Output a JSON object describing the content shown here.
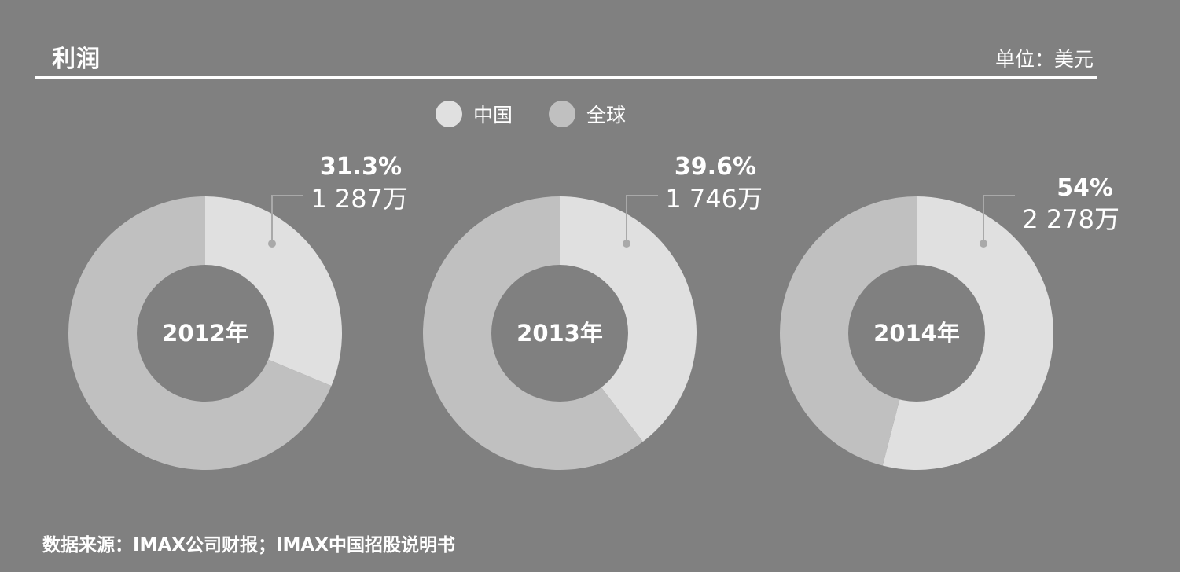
{
  "header": {
    "title": "利润",
    "unit": "单位：美元"
  },
  "legend": [
    {
      "label": "中国",
      "color": "#e0e0e0"
    },
    {
      "label": "全球",
      "color": "#c0c0c0"
    }
  ],
  "colors": {
    "background": "#808080",
    "china": "#e0e0e0",
    "global": "#c0c0c0",
    "leader": "#a9a9a9"
  },
  "chart_data": [
    {
      "type": "pie",
      "center_label": "2012年",
      "slices": [
        {
          "name": "中国",
          "value": 31.3
        },
        {
          "name": "全球",
          "value": 68.7
        }
      ],
      "annotation": {
        "percent": "31.3%",
        "value": "1 287万"
      }
    },
    {
      "type": "pie",
      "center_label": "2013年",
      "slices": [
        {
          "name": "中国",
          "value": 39.6
        },
        {
          "name": "全球",
          "value": 60.4
        }
      ],
      "annotation": {
        "percent": "39.6%",
        "value": "1 746万"
      }
    },
    {
      "type": "pie",
      "center_label": "2014年",
      "slices": [
        {
          "name": "中国",
          "value": 54
        },
        {
          "name": "全球",
          "value": 46
        }
      ],
      "annotation": {
        "percent": "54%",
        "value": "2 278万"
      }
    }
  ],
  "footer": {
    "source": "数据来源：IMAX公司财报；IMAX中国招股说明书"
  }
}
